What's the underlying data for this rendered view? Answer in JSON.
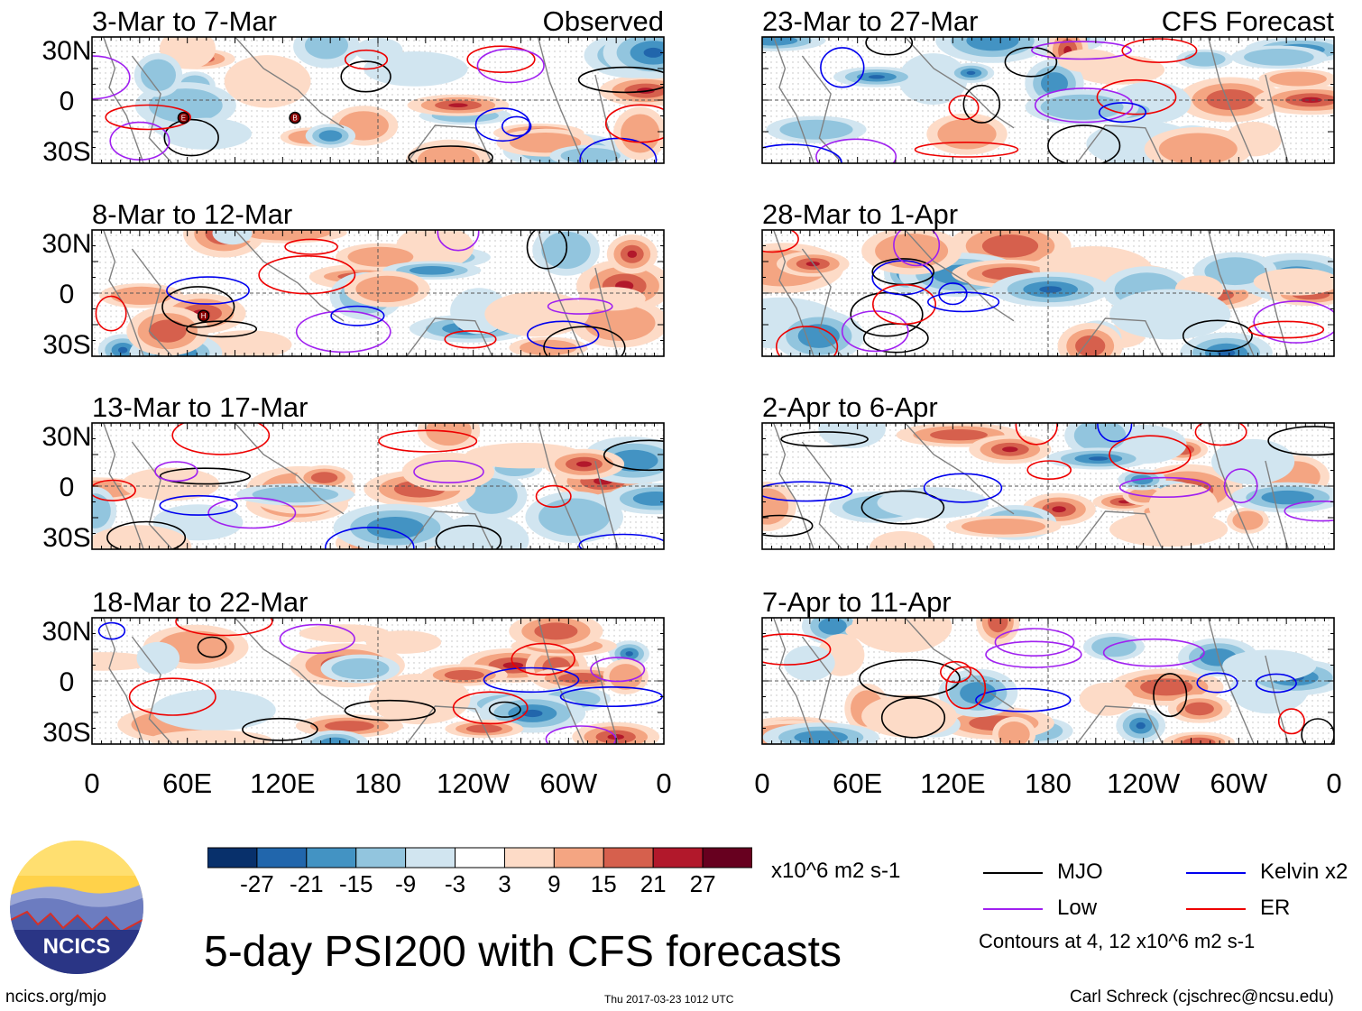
{
  "title": "5-day PSI200 with CFS forecasts",
  "footer": {
    "website": "ncics.org/mjo",
    "timestamp": "Thu 2017-03-23 1012 UTC",
    "credit": "Carl Schreck (cjschrec@ncsu.edu)"
  },
  "logo": {
    "text": "NCICS"
  },
  "chart_data": {
    "type": "heatmap",
    "variable": "200-hPa streamfunction anomaly (PSI200)",
    "units": "x10^6 m2 s-1",
    "columns": {
      "left_label": "Observed",
      "right_label": "CFS Forecast"
    },
    "lat_ticks": [
      "30N",
      "0",
      "30S"
    ],
    "lon_ticks": [
      "0",
      "60E",
      "120E",
      "180",
      "120W",
      "60W",
      "0"
    ],
    "panels": [
      {
        "period": "3-Mar to 7-Mar",
        "source": "Observed"
      },
      {
        "period": "8-Mar to 12-Mar",
        "source": "Observed"
      },
      {
        "period": "13-Mar to 17-Mar",
        "source": "Observed"
      },
      {
        "period": "18-Mar to 22-Mar",
        "source": "Observed"
      },
      {
        "period": "23-Mar to 27-Mar",
        "source": "CFS Forecast"
      },
      {
        "period": "28-Mar to 1-Apr",
        "source": "CFS Forecast"
      },
      {
        "period": "2-Apr to 6-Apr",
        "source": "CFS Forecast"
      },
      {
        "period": "7-Apr to 11-Apr",
        "source": "CFS Forecast"
      }
    ],
    "colorbar": {
      "tick_labels": [
        "-27",
        "-21",
        "-15",
        "-9",
        "-3",
        "3",
        "9",
        "15",
        "21",
        "27"
      ],
      "colors": [
        "#08306b",
        "#2166ac",
        "#4393c3",
        "#92c5de",
        "#d1e5f0",
        "#ffffff",
        "#fddbc7",
        "#f4a582",
        "#d6604d",
        "#b2182b",
        "#67001f"
      ]
    },
    "contour_legend": [
      {
        "name": "MJO",
        "color": "#000000"
      },
      {
        "name": "Kelvin x2",
        "color": "#0000ee"
      },
      {
        "name": "Low",
        "color": "#a020f0"
      },
      {
        "name": "ER",
        "color": "#ee0000"
      }
    ],
    "contour_note": "Contours at 4, 12 x10^6 m2 s-1",
    "storm_markers": [
      {
        "panel": 0,
        "label": "E"
      },
      {
        "panel": 0,
        "label": "B"
      },
      {
        "panel": 1,
        "label": "H"
      }
    ]
  }
}
